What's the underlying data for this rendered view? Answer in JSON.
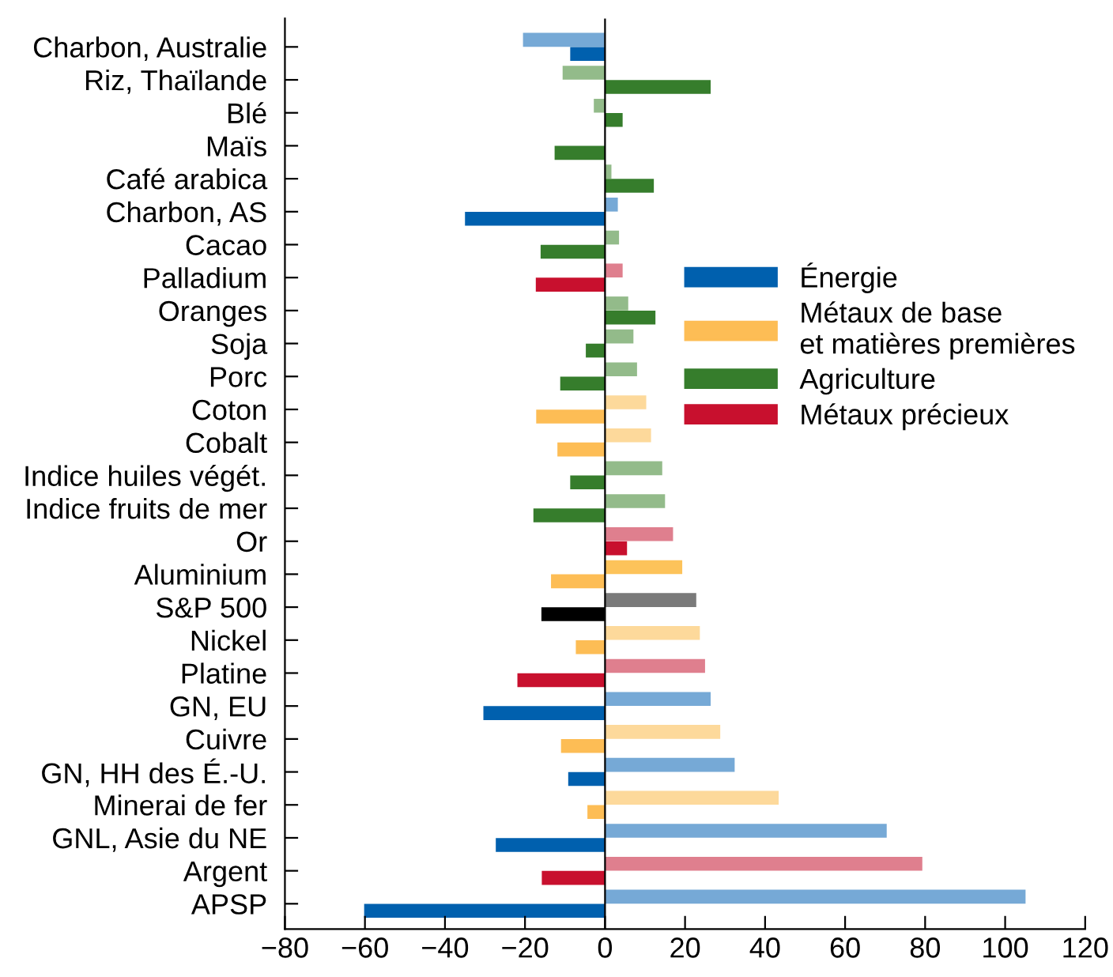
{
  "chart_data": {
    "type": "bar",
    "orientation": "horizontal",
    "categories": [
      "Charbon, Australie",
      "Riz, Thaïlande",
      "Blé",
      "Maïs",
      "Café arabica",
      "Charbon, AS",
      "Cacao",
      "Palladium",
      "Oranges",
      "Soja",
      "Porc",
      "Coton",
      "Cobalt",
      "Indice huiles végét.",
      "Indice fruits de mer",
      "Or",
      "Aluminium",
      "S&P 500",
      "Nickel",
      "Platine",
      "GN, EU",
      "Cuivre",
      "GN, HH des É.-U.",
      "Minerai de fer",
      "GNL, Asie du NE",
      "Argent",
      "APSP"
    ],
    "series": [
      {
        "values": [
          -20.5,
          -10.6,
          -2.8,
          0,
          1.6,
          3.2,
          3.5,
          4.4,
          5.8,
          7.1,
          8.0,
          10.3,
          11.5,
          14.3,
          15.0,
          17.0,
          19.3,
          22.8,
          23.7,
          25.0,
          26.4,
          28.8,
          32.4,
          43.4,
          70.4,
          79.3,
          105.1
        ],
        "colors": [
          "#76a9d6",
          "#93bb8a",
          "#93bb8a",
          "#93bb8a",
          "#93bb8a",
          "#76a9d6",
          "#93bb8a",
          "#df7f8e",
          "#93bb8a",
          "#93bb8a",
          "#93bb8a",
          "#fdd99b",
          "#fdd99b",
          "#93bb8a",
          "#93bb8a",
          "#df7f8e",
          "#fdc35a",
          "#7a7a7a",
          "#fdd99b",
          "#df7f8e",
          "#76a9d6",
          "#fdd99b",
          "#76a9d6",
          "#fdd99b",
          "#76a9d6",
          "#df7f8e",
          "#76a9d6"
        ]
      },
      {
        "name": "Énergie",
        "color": "#0060ae",
        "values": [
          -8.7,
          null,
          null,
          null,
          null,
          -35.0,
          null,
          null,
          null,
          null,
          null,
          null,
          null,
          null,
          null,
          null,
          null,
          null,
          null,
          null,
          -30.4,
          null,
          -9.2,
          null,
          -27.3,
          null,
          -60.2
        ]
      },
      {
        "name": "Métaux de base\net matières premières",
        "color": "#fdbd55",
        "values": [
          null,
          null,
          null,
          null,
          null,
          null,
          null,
          null,
          null,
          null,
          null,
          -17.2,
          -11.9,
          null,
          null,
          null,
          -13.5,
          null,
          -7.3,
          null,
          null,
          -11.0,
          null,
          -4.4,
          null,
          null,
          null
        ]
      },
      {
        "name": "Agriculture",
        "color": "#367d2c",
        "values": [
          null,
          26.4,
          4.4,
          -12.6,
          12.2,
          null,
          -16.1,
          null,
          12.6,
          -4.8,
          -11.2,
          null,
          null,
          -8.7,
          -17.9,
          null,
          null,
          null,
          null,
          null,
          null,
          null,
          null,
          null,
          null,
          null,
          null
        ]
      },
      {
        "name": "Métaux précieux",
        "color": "#c8102e",
        "values": [
          null,
          null,
          null,
          null,
          null,
          null,
          null,
          -17.3,
          null,
          null,
          null,
          null,
          null,
          null,
          null,
          5.5,
          null,
          null,
          null,
          -21.9,
          null,
          null,
          null,
          null,
          null,
          -15.8,
          null
        ]
      },
      {
        "color": "#000000",
        "values": [
          null,
          null,
          null,
          null,
          null,
          null,
          null,
          null,
          null,
          null,
          null,
          null,
          null,
          null,
          null,
          null,
          null,
          -15.9,
          null,
          null,
          null,
          null,
          null,
          null,
          null,
          null,
          null
        ]
      }
    ],
    "xlim": [
      -80,
      120
    ],
    "xticks": [
      -80,
      -60,
      -40,
      -20,
      0,
      20,
      40,
      60,
      80,
      100,
      120
    ],
    "ref_lines": [
      {
        "axis": "x",
        "value": 0,
        "color": "#000000"
      }
    ],
    "legend": "center right",
    "grid": false
  }
}
